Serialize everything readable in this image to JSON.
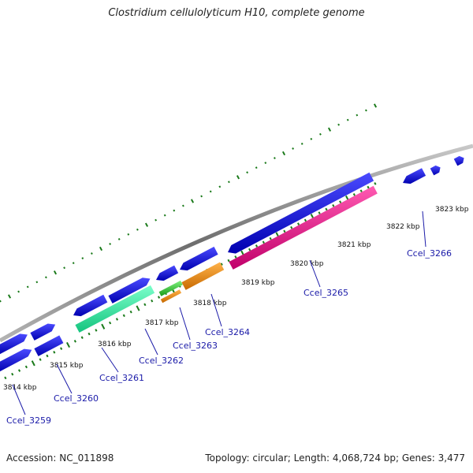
{
  "title": "Clostridium cellulolyticum H10, complete genome",
  "footer": {
    "accession": "Accession: NC_011898",
    "summary": "Topology: circular; Length: 4,068,724 bp; Genes: 3,477"
  },
  "colors": {
    "backbone": "#8c8c8c",
    "ticks": "#1a7a1a",
    "gene_blue": "#1010dd",
    "gene_teal": "#2ee8a0",
    "gene_green": "#33cc33",
    "gene_orange": "#f08c10",
    "gene_magenta": "#f0108c",
    "label": "#1a1aa8"
  },
  "kbp_labels": [
    "3814 kbp",
    "3815 kbp",
    "3816 kbp",
    "3817 kbp",
    "3818 kbp",
    "3819 kbp",
    "3820 kbp",
    "3821 kbp",
    "3822 kbp",
    "3823 kbp"
  ],
  "gene_labels": [
    "Ccel_3259",
    "Ccel_3260",
    "Ccel_3261",
    "Ccel_3262",
    "Ccel_3263",
    "Ccel_3264",
    "Ccel_3265",
    "Ccel_3266"
  ]
}
